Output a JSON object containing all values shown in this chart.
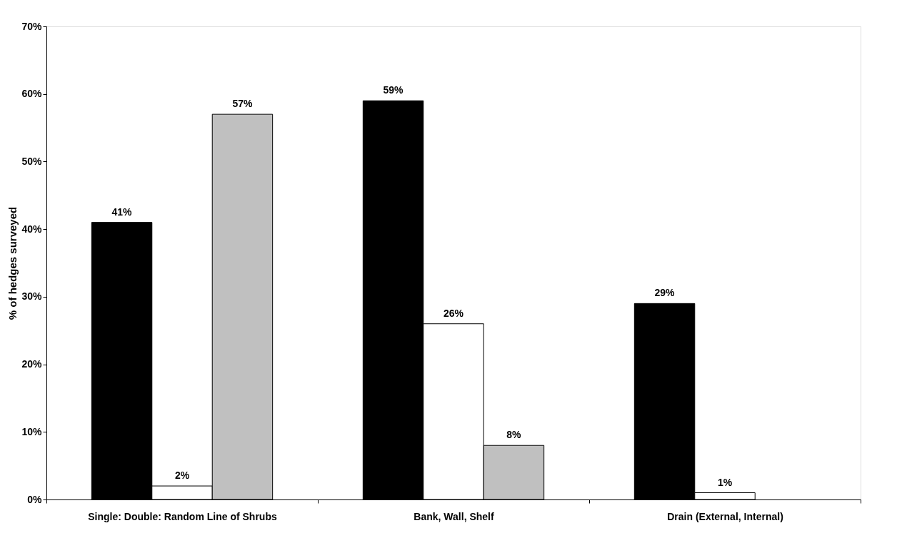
{
  "chart_data": {
    "type": "bar",
    "ylabel": "% of hedges surveyed",
    "categories": [
      "Single: Double: Random Line of Shrubs",
      "Bank, Wall, Shelf",
      "Drain (External, Internal)"
    ],
    "series": [
      {
        "color": "#000000",
        "values": [
          41,
          59,
          29
        ],
        "value_labels": [
          "41%",
          "59%",
          "29%"
        ]
      },
      {
        "color": "#ffffff",
        "values": [
          2,
          26,
          1
        ],
        "value_labels": [
          "2%",
          "26%",
          "1%"
        ]
      },
      {
        "color": "#c0c0c0",
        "values": [
          57,
          8,
          null
        ],
        "value_labels": [
          "57%",
          "8%",
          null
        ]
      }
    ],
    "ylim": [
      0,
      70
    ],
    "yticks": [
      {
        "value": 0,
        "label": "0%"
      },
      {
        "value": 10,
        "label": "10%"
      },
      {
        "value": 20,
        "label": "20%"
      },
      {
        "value": 30,
        "label": "30%"
      },
      {
        "value": 40,
        "label": "40%"
      },
      {
        "value": 50,
        "label": "50%"
      },
      {
        "value": 60,
        "label": "60%"
      },
      {
        "value": 70,
        "label": "70%"
      }
    ],
    "grid": false,
    "legend": false
  }
}
